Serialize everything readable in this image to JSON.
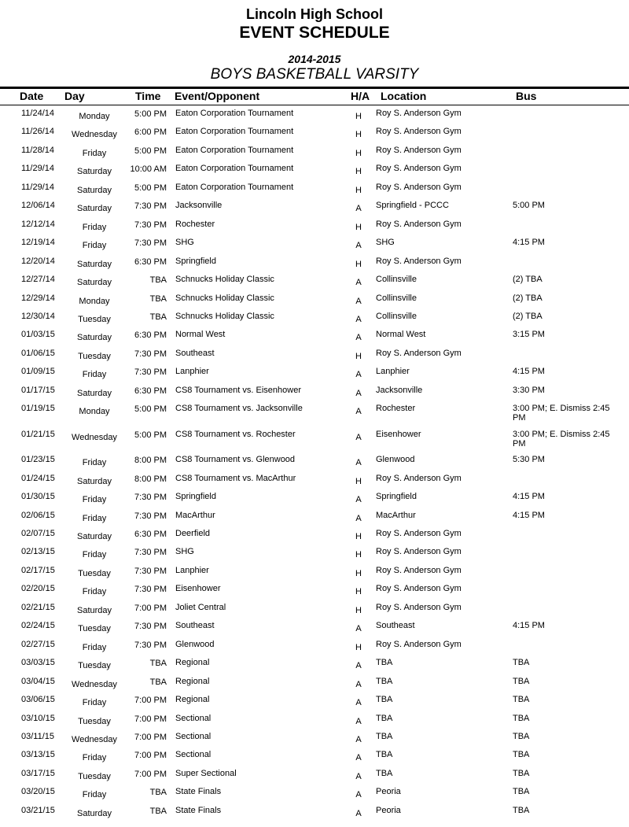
{
  "header": {
    "school": "Lincoln High School",
    "title": "EVENT SCHEDULE",
    "season": "2014-2015",
    "team": "BOYS BASKETBALL VARSITY"
  },
  "columns": [
    "Date",
    "Day",
    "Time",
    "Event/Opponent",
    "H/A",
    "Location",
    "Bus"
  ],
  "rows": [
    [
      "11/24/14",
      "Monday",
      "5:00 PM",
      "Eaton Corporation Tournament",
      "H",
      "Roy S. Anderson Gym",
      ""
    ],
    [
      "11/26/14",
      "Wednesday",
      "6:00 PM",
      "Eaton Corporation Tournament",
      "H",
      "Roy S. Anderson Gym",
      ""
    ],
    [
      "11/28/14",
      "Friday",
      "5:00 PM",
      "Eaton Corporation Tournament",
      "H",
      "Roy S. Anderson Gym",
      ""
    ],
    [
      "11/29/14",
      "Saturday",
      "10:00 AM",
      "Eaton Corporation Tournament",
      "H",
      "Roy S. Anderson Gym",
      ""
    ],
    [
      "11/29/14",
      "Saturday",
      "5:00 PM",
      "Eaton Corporation Tournament",
      "H",
      "Roy S. Anderson Gym",
      ""
    ],
    [
      "12/06/14",
      "Saturday",
      "7:30 PM",
      "Jacksonville",
      "A",
      "Springfield - PCCC",
      "5:00 PM"
    ],
    [
      "12/12/14",
      "Friday",
      "7:30 PM",
      "Rochester",
      "H",
      "Roy S. Anderson Gym",
      ""
    ],
    [
      "12/19/14",
      "Friday",
      "7:30 PM",
      "SHG",
      "A",
      "SHG",
      "4:15 PM"
    ],
    [
      "12/20/14",
      "Saturday",
      "6:30 PM",
      "Springfield",
      "H",
      "Roy S. Anderson Gym",
      ""
    ],
    [
      "12/27/14",
      "Saturday",
      "TBA",
      "Schnucks Holiday Classic",
      "A",
      "Collinsville",
      "(2)  TBA"
    ],
    [
      "12/29/14",
      "Monday",
      "TBA",
      "Schnucks Holiday Classic",
      "A",
      "Collinsville",
      "(2)  TBA"
    ],
    [
      "12/30/14",
      "Tuesday",
      "TBA",
      "Schnucks Holiday Classic",
      "A",
      "Collinsville",
      "(2)  TBA"
    ],
    [
      "01/03/15",
      "Saturday",
      "6:30 PM",
      "Normal West",
      "A",
      "Normal West",
      "3:15 PM"
    ],
    [
      "01/06/15",
      "Tuesday",
      "7:30 PM",
      "Southeast",
      "H",
      "Roy S. Anderson Gym",
      ""
    ],
    [
      "01/09/15",
      "Friday",
      "7:30 PM",
      "Lanphier",
      "A",
      "Lanphier",
      "4:15 PM"
    ],
    [
      "01/17/15",
      "Saturday",
      "6:30 PM",
      "CS8 Tournament vs. Eisenhower",
      "A",
      "Jacksonville",
      "3:30 PM"
    ],
    [
      "01/19/15",
      "Monday",
      "5:00 PM",
      "CS8 Tournament vs. Jacksonville",
      "A",
      "Rochester",
      "3:00 PM; E. Dismiss 2:45 PM"
    ],
    [
      "01/21/15",
      "Wednesday",
      "5:00 PM",
      "CS8 Tournament vs. Rochester",
      "A",
      "Eisenhower",
      "3:00 PM; E. Dismiss 2:45 PM"
    ],
    [
      "01/23/15",
      "Friday",
      "8:00 PM",
      "CS8 Tournament vs. Glenwood",
      "A",
      "Glenwood",
      "5:30 PM"
    ],
    [
      "01/24/15",
      "Saturday",
      "8:00 PM",
      "CS8 Tournament vs. MacArthur",
      "H",
      "Roy S. Anderson Gym",
      ""
    ],
    [
      "01/30/15",
      "Friday",
      "7:30 PM",
      "Springfield",
      "A",
      "Springfield",
      "4:15 PM"
    ],
    [
      "02/06/15",
      "Friday",
      "7:30 PM",
      "MacArthur",
      "A",
      "MacArthur",
      "4:15 PM"
    ],
    [
      "02/07/15",
      "Saturday",
      "6:30 PM",
      "Deerfield",
      "H",
      "Roy S. Anderson Gym",
      ""
    ],
    [
      "02/13/15",
      "Friday",
      "7:30 PM",
      "SHG",
      "H",
      "Roy S. Anderson Gym",
      ""
    ],
    [
      "02/17/15",
      "Tuesday",
      "7:30 PM",
      "Lanphier",
      "H",
      "Roy S. Anderson Gym",
      ""
    ],
    [
      "02/20/15",
      "Friday",
      "7:30 PM",
      "Eisenhower",
      "H",
      "Roy S. Anderson Gym",
      ""
    ],
    [
      "02/21/15",
      "Saturday",
      "7:00 PM",
      "Joliet Central",
      "H",
      "Roy S. Anderson Gym",
      ""
    ],
    [
      "02/24/15",
      "Tuesday",
      "7:30 PM",
      "Southeast",
      "A",
      "Southeast",
      "4:15 PM"
    ],
    [
      "02/27/15",
      "Friday",
      "7:30 PM",
      "Glenwood",
      "H",
      "Roy S. Anderson Gym",
      ""
    ],
    [
      "03/03/15",
      "Tuesday",
      "TBA",
      "Regional",
      "A",
      "TBA",
      "TBA"
    ],
    [
      "03/04/15",
      "Wednesday",
      "TBA",
      "Regional",
      "A",
      "TBA",
      "TBA"
    ],
    [
      "03/06/15",
      "Friday",
      "7:00 PM",
      "Regional",
      "A",
      "TBA",
      "TBA"
    ],
    [
      "03/10/15",
      "Tuesday",
      "7:00 PM",
      "Sectional",
      "A",
      "TBA",
      "TBA"
    ],
    [
      "03/11/15",
      "Wednesday",
      "7:00 PM",
      "Sectional",
      "A",
      "TBA",
      "TBA"
    ],
    [
      "03/13/15",
      "Friday",
      "7:00 PM",
      "Sectional",
      "A",
      "TBA",
      "TBA"
    ],
    [
      "03/17/15",
      "Tuesday",
      "7:00 PM",
      "Super Sectional",
      "A",
      "TBA",
      "TBA"
    ],
    [
      "03/20/15",
      "Friday",
      "TBA",
      "State Finals",
      "A",
      "Peoria",
      "TBA"
    ],
    [
      "03/21/15",
      "Saturday",
      "TBA",
      "State Finals",
      "A",
      "Peoria",
      "TBA"
    ]
  ]
}
